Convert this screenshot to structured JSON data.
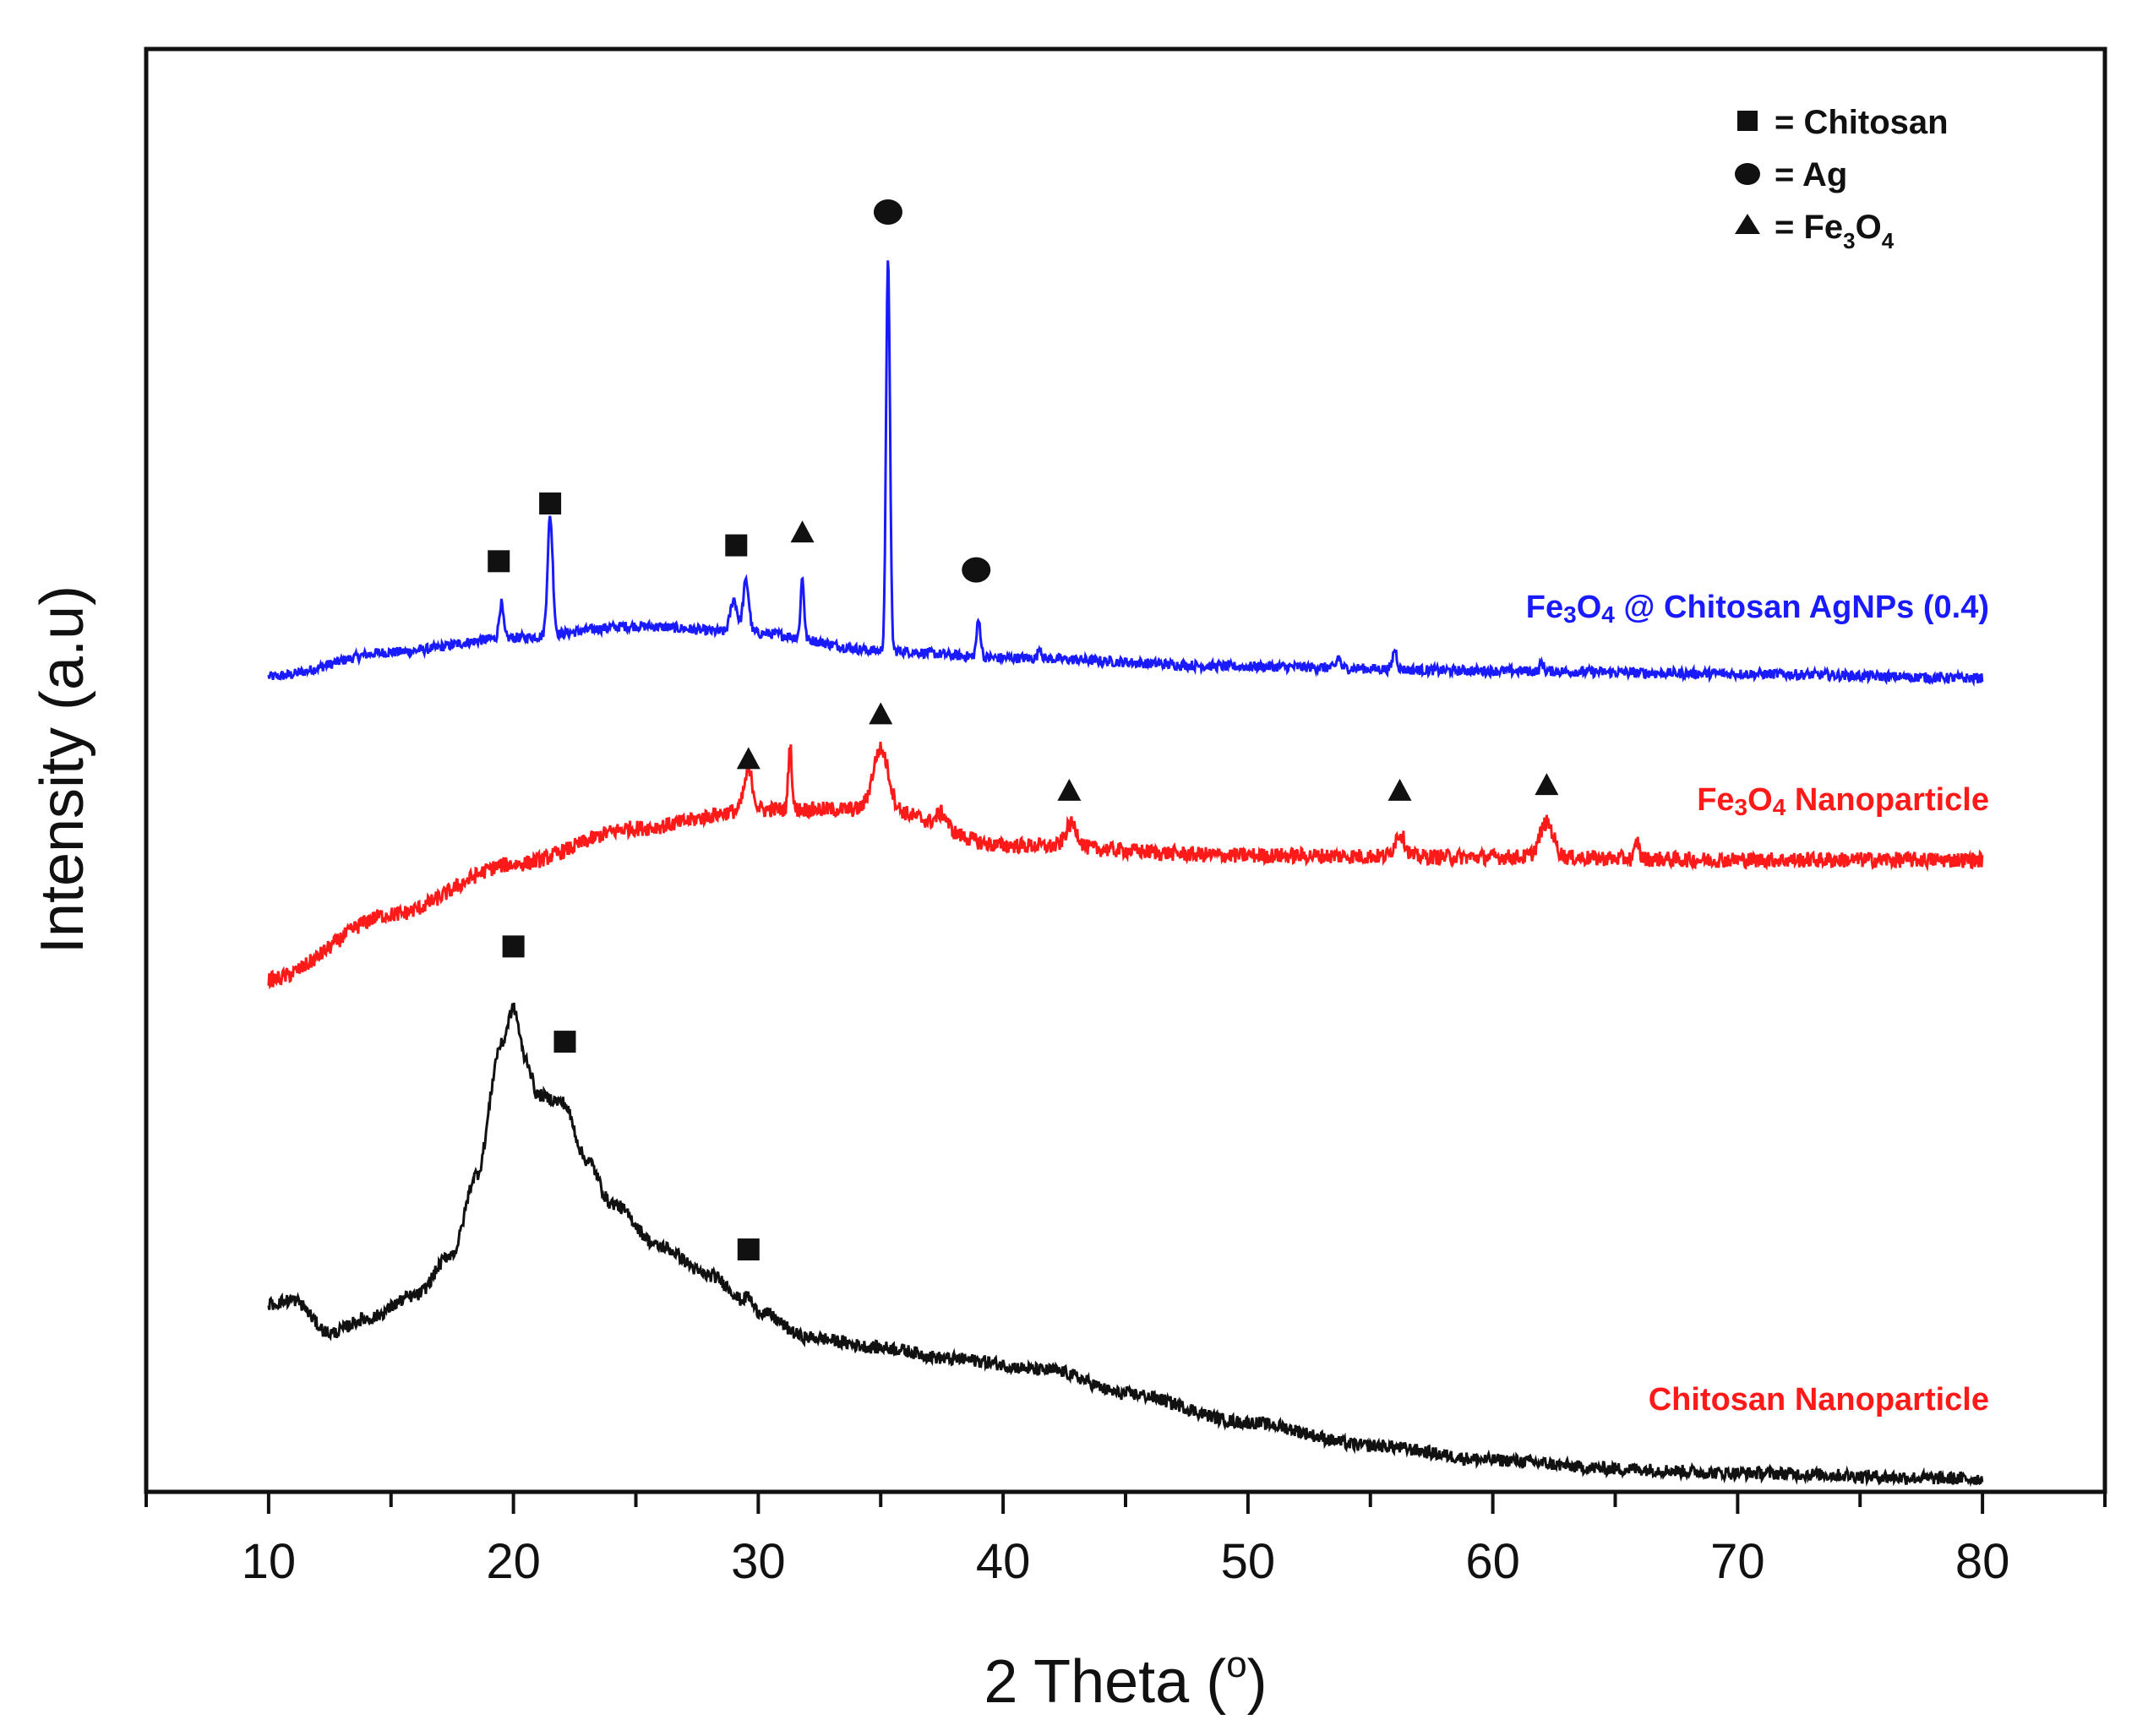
{
  "chart_data": {
    "type": "line",
    "title": "",
    "xlabel": "2 Theta (",
    "xlabel_superscript": "o",
    "xlabel_close": ")",
    "ylabel": "Intensity (a.u)",
    "xlim": [
      5,
      85
    ],
    "ylim": [
      0,
      100
    ],
    "xticks": [
      10,
      20,
      30,
      40,
      50,
      60,
      70,
      80
    ],
    "tick_labels": [
      "10",
      "20",
      "30",
      "40",
      "50",
      "60",
      "70",
      "80"
    ],
    "grid": false,
    "legend": {
      "placement": "top-right",
      "entries": [
        {
          "marker": "square",
          "name": "Chitosan",
          "text": "= Chitosan"
        },
        {
          "marker": "circle",
          "name": "Ag",
          "text": "= Ag"
        },
        {
          "marker": "triangle",
          "name": "Fe3O4",
          "text_parts": [
            "= Fe",
            "3",
            "O",
            "4"
          ]
        }
      ]
    },
    "series": [
      {
        "name": "Fe3O4 @ Chitosan AgNPs (0.4)",
        "label_parts": [
          "Fe",
          "3",
          "O",
          "4",
          " @ Chitosan AgNPs (0.4)"
        ],
        "color": "#1a1aff",
        "baseline": [
          [
            10,
            56.5
          ],
          [
            15,
            58.2
          ],
          [
            20,
            59.2
          ],
          [
            25,
            60.0
          ],
          [
            30,
            59.5
          ],
          [
            35,
            58.3
          ],
          [
            40,
            57.8
          ],
          [
            50,
            57.2
          ],
          [
            60,
            56.9
          ],
          [
            70,
            56.7
          ],
          [
            80,
            56.4
          ]
        ],
        "noise": 0.35,
        "peaks": [
          {
            "x": 19.5,
            "h": 2.4,
            "w": 0.12
          },
          {
            "x": 21.5,
            "h": 8.2,
            "w": 0.15
          },
          {
            "x": 29.0,
            "h": 2.3,
            "w": 0.2
          },
          {
            "x": 29.5,
            "h": 3.6,
            "w": 0.17
          },
          {
            "x": 31.8,
            "h": 4.2,
            "w": 0.1
          },
          {
            "x": 35.3,
            "h": 27.4,
            "w": 0.11
          },
          {
            "x": 39.0,
            "h": 2.5,
            "w": 0.12
          },
          {
            "x": 41.5,
            "h": 0.8,
            "w": 0.1
          },
          {
            "x": 53.7,
            "h": 0.8,
            "w": 0.1
          },
          {
            "x": 56.0,
            "h": 1.4,
            "w": 0.12
          },
          {
            "x": 62.0,
            "h": 0.6,
            "w": 0.1
          }
        ],
        "markers": [
          {
            "x": 19.4,
            "y": 64.5,
            "shape": "square"
          },
          {
            "x": 21.5,
            "y": 68.5,
            "shape": "square"
          },
          {
            "x": 29.1,
            "y": 65.6,
            "shape": "square"
          },
          {
            "x": 31.8,
            "y": 66.5,
            "shape": "triangle"
          },
          {
            "x": 35.3,
            "y": 88.7,
            "shape": "circle"
          },
          {
            "x": 38.9,
            "y": 63.9,
            "shape": "circle"
          }
        ]
      },
      {
        "name": "Fe3O4 Nanoparticle",
        "label_parts": [
          "Fe",
          "3",
          "O",
          "4",
          " Nanoparticle"
        ],
        "color": "#ff1a1a",
        "baseline": [
          [
            10,
            35.5
          ],
          [
            15,
            40.0
          ],
          [
            20,
            43.5
          ],
          [
            25,
            46.0
          ],
          [
            30,
            47.3
          ],
          [
            35,
            47.3
          ],
          [
            40,
            44.8
          ],
          [
            50,
            44.1
          ],
          [
            60,
            44.0
          ],
          [
            70,
            43.8
          ],
          [
            80,
            43.8
          ]
        ],
        "noise": 0.55,
        "peaks": [
          {
            "x": 29.6,
            "h": 2.6,
            "w": 0.25
          },
          {
            "x": 31.3,
            "h": 4.5,
            "w": 0.1
          },
          {
            "x": 35.0,
            "h": 4.2,
            "w": 0.45
          },
          {
            "x": 37.5,
            "h": 1.0,
            "w": 0.3
          },
          {
            "x": 42.8,
            "h": 1.6,
            "w": 0.35
          },
          {
            "x": 56.2,
            "h": 1.6,
            "w": 0.3
          },
          {
            "x": 62.2,
            "h": 2.4,
            "w": 0.4
          },
          {
            "x": 65.9,
            "h": 1.2,
            "w": 0.12
          }
        ],
        "markers": [
          {
            "x": 29.6,
            "y": 50.8,
            "shape": "triangle"
          },
          {
            "x": 35.0,
            "y": 53.9,
            "shape": "triangle"
          },
          {
            "x": 42.7,
            "y": 48.6,
            "shape": "triangle"
          },
          {
            "x": 56.2,
            "y": 48.6,
            "shape": "triangle"
          },
          {
            "x": 62.2,
            "y": 49.0,
            "shape": "triangle"
          }
        ]
      },
      {
        "name": "Chitosan Nanoparticle",
        "label_parts": [
          "Chitosan Nanoparticle"
        ],
        "color": "#111111",
        "label_color": "#ff1a1a",
        "baseline": [
          [
            10,
            13.0
          ],
          [
            11,
            13.3
          ],
          [
            12.5,
            11.0
          ],
          [
            14,
            12.0
          ],
          [
            16,
            13.6
          ],
          [
            17.5,
            16.5
          ],
          [
            18.5,
            22.0
          ],
          [
            19.5,
            31.0
          ],
          [
            20.0,
            33.5
          ],
          [
            20.5,
            30.0
          ],
          [
            21.0,
            27.5
          ],
          [
            22.0,
            27.0
          ],
          [
            23.0,
            23.0
          ],
          [
            24.0,
            20.0
          ],
          [
            26.0,
            17.0
          ],
          [
            28.0,
            15.0
          ],
          [
            30.0,
            12.5
          ],
          [
            32.0,
            10.7
          ],
          [
            35.0,
            10.0
          ],
          [
            38.0,
            9.2
          ],
          [
            42.0,
            8.4
          ],
          [
            45.0,
            6.8
          ],
          [
            50.0,
            4.8
          ],
          [
            55.0,
            3.2
          ],
          [
            60.0,
            2.2
          ],
          [
            65.0,
            1.6
          ],
          [
            70.0,
            1.3
          ],
          [
            80.0,
            0.9
          ]
        ],
        "noise": 0.45,
        "peaks": [
          {
            "x": 29.6,
            "h": 0.8,
            "w": 0.2
          }
        ],
        "markers": [
          {
            "x": 20.0,
            "y": 37.8,
            "shape": "square"
          },
          {
            "x": 22.1,
            "y": 31.2,
            "shape": "square"
          },
          {
            "x": 29.6,
            "y": 16.8,
            "shape": "square"
          }
        ]
      }
    ]
  }
}
